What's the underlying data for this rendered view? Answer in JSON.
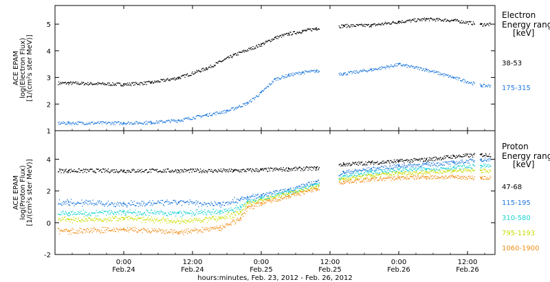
{
  "chart_data": [
    {
      "type": "scatter",
      "ylabel": [
        "ACE EPAM",
        "log(Electron Flux)",
        "[1/(cm²s ster MeV)]"
      ],
      "ylim": [
        1,
        5.7
      ],
      "yticks": [
        1,
        2,
        3,
        4,
        5
      ],
      "legend_title": [
        "Electron",
        "Energy ranges",
        "[keV]"
      ],
      "series": [
        {
          "name": "38-53",
          "color": "#000000",
          "x": [
            -0.4,
            0.0,
            0.2,
            0.4,
            0.6,
            0.8,
            1.0,
            1.1,
            1.2,
            1.3,
            1.4,
            1.6,
            1.8,
            2.0,
            2.2,
            2.4,
            2.6
          ],
          "y": [
            2.8,
            2.75,
            2.82,
            3.0,
            3.35,
            3.85,
            4.25,
            4.5,
            4.65,
            4.75,
            4.85,
            4.95,
            4.97,
            5.1,
            5.2,
            5.15,
            5.0
          ]
        },
        {
          "name": "175-315",
          "color": "#1e78dc",
          "x": [
            -0.4,
            0.0,
            0.2,
            0.4,
            0.6,
            0.75,
            0.9,
            1.0,
            1.1,
            1.2,
            1.3,
            1.4,
            1.6,
            1.8,
            2.0,
            2.2,
            2.4,
            2.6
          ],
          "y": [
            1.3,
            1.3,
            1.32,
            1.4,
            1.6,
            1.75,
            2.05,
            2.45,
            2.95,
            3.1,
            3.2,
            3.25,
            3.15,
            3.3,
            3.5,
            3.3,
            3.0,
            2.7
          ]
        }
      ]
    },
    {
      "type": "scatter",
      "ylabel": [
        "ACE EPAM",
        "log(Proton Flux)",
        "[1/(cm²s ster MeV)]"
      ],
      "ylim": [
        -2,
        5.8
      ],
      "yticks": [
        -2,
        0,
        2,
        4
      ],
      "legend_title": [
        "Proton",
        "Energy ranges",
        "[keV]"
      ],
      "series": [
        {
          "name": "47-68",
          "color": "#000000",
          "x": [
            -0.4,
            0.0,
            0.4,
            0.8,
            1.0,
            1.2,
            1.4,
            1.6,
            1.8,
            2.0,
            2.2,
            2.4,
            2.6
          ],
          "y": [
            3.3,
            3.3,
            3.3,
            3.3,
            3.35,
            3.4,
            3.45,
            3.7,
            3.8,
            3.9,
            4.0,
            4.2,
            4.3
          ]
        },
        {
          "name": "115-195",
          "color": "#1e78dc",
          "x": [
            -0.4,
            0.0,
            0.4,
            0.7,
            0.85,
            0.9,
            1.0,
            1.2,
            1.4,
            1.6,
            1.8,
            2.0,
            2.2,
            2.4,
            2.6
          ],
          "y": [
            1.3,
            1.2,
            1.3,
            1.2,
            1.5,
            1.6,
            1.75,
            2.1,
            2.6,
            3.2,
            3.4,
            3.6,
            3.7,
            3.8,
            4.0
          ]
        },
        {
          "name": "310-580",
          "color": "#19d2d2",
          "x": [
            -0.4,
            0.0,
            0.4,
            0.7,
            0.85,
            0.9,
            1.0,
            1.2,
            1.4,
            1.6,
            1.8,
            2.0,
            2.2,
            2.4,
            2.6
          ],
          "y": [
            0.6,
            0.7,
            0.6,
            0.7,
            1.0,
            1.35,
            1.55,
            1.95,
            2.45,
            2.95,
            3.2,
            3.35,
            3.4,
            3.5,
            3.6
          ]
        },
        {
          "name": "795-1193",
          "color": "#c8dc00",
          "x": [
            -0.4,
            0.0,
            0.4,
            0.7,
            0.85,
            0.9,
            1.0,
            1.2,
            1.4,
            1.6,
            1.8,
            2.0,
            2.2,
            2.4,
            2.6
          ],
          "y": [
            0.2,
            0.3,
            0.1,
            0.3,
            0.7,
            1.25,
            1.45,
            1.85,
            2.3,
            2.8,
            3.0,
            3.15,
            3.2,
            3.3,
            3.3
          ]
        },
        {
          "name": "1060-1900",
          "color": "#f08c14",
          "x": [
            -0.4,
            0.0,
            0.4,
            0.7,
            0.85,
            0.9,
            1.0,
            1.2,
            1.4,
            1.6,
            1.8,
            2.0,
            2.2,
            2.4,
            2.6
          ],
          "y": [
            -0.5,
            -0.4,
            -0.6,
            -0.3,
            0.3,
            1.0,
            1.25,
            1.7,
            2.15,
            2.6,
            2.75,
            2.85,
            2.9,
            2.9,
            2.85
          ]
        }
      ]
    }
  ],
  "x_axis": {
    "unit": "days since Feb 24 2012 00:00",
    "range": [
      -0.5,
      2.7
    ],
    "ticks": [
      {
        "x": 0.0,
        "time": "0:00",
        "date": "Feb.24"
      },
      {
        "x": 0.5,
        "time": "12:00",
        "date": "Feb.24"
      },
      {
        "x": 1.0,
        "time": "0:00",
        "date": "Feb.25"
      },
      {
        "x": 1.5,
        "time": "12:00",
        "date": "Feb.25"
      },
      {
        "x": 2.0,
        "time": "0:00",
        "date": "Feb.26"
      },
      {
        "x": 2.5,
        "time": "12:00",
        "date": "Feb.26"
      }
    ],
    "label": "hours:minutes, Feb. 23, 2012 - Feb. 26, 2012"
  }
}
